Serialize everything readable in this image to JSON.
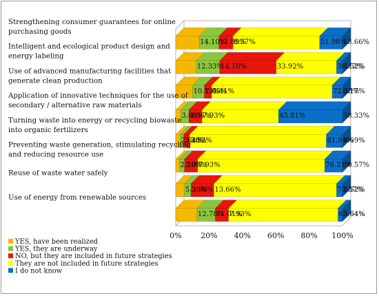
{
  "chart_data": {
    "type": "bar",
    "orientation": "horizontal",
    "stacked": true,
    "style": "3d",
    "x_ticks": [
      "0%",
      "20%",
      "40%",
      "60%",
      "80%",
      "100%"
    ],
    "xlim": [
      0,
      100
    ],
    "legend_position": "bottom-left",
    "categories": [
      [
        "Strengthening consumer guarantees for online",
        "purchasing goods"
      ],
      [
        "Intelligent and ecological product design and",
        "energy labeling"
      ],
      [
        "Use of advanced manufacturing facilities that",
        "generate clean production"
      ],
      [
        "Application of innovative techniques for the use of",
        "secondary / alternative raw materials"
      ],
      [
        "Turning waste into energy or recycling biowaste",
        "into organic fertilizers"
      ],
      [
        "Preventing waste generation, stimulating recycling",
        "and reducing resource use"
      ],
      [
        "Reuse of waste water safely"
      ],
      [
        "Use of energy from renewable sources"
      ]
    ],
    "series": [
      {
        "name": "YES, have been realized",
        "color": "#f5b800",
        "values": [
          14.1,
          12.33,
          10.13,
          3.08,
          2.64,
          2.2,
          5.29,
          12.78
        ],
        "labels": [
          "14.10%",
          "12.33%",
          "10.13%",
          "3.08%",
          "2.64%",
          "2.20%",
          "5.29%",
          "12.78%"
        ]
      },
      {
        "name": "YES, they are underway",
        "color": "#8cc63f",
        "values": [
          11.89,
          14.1,
          7.05,
          4.85,
          2.2,
          3.08,
          3.96,
          11.01
        ],
        "labels": [
          "11.89%",
          "14.10%",
          "7.05%",
          "4.85%",
          "2.20%",
          "3.08%",
          "3.96%",
          "11.01%"
        ]
      },
      {
        "name": "NO, but they are included in future strategies",
        "color": "#e8160c",
        "values": [
          8.37,
          33.92,
          4.41,
          7.93,
          3.52,
          7.93,
          13.66,
          7.93
        ],
        "labels": [
          "8.37%",
          "33.92%",
          "4.41%",
          "7.93%",
          "3.52%",
          "7.93%",
          "13.66%",
          "7.93%"
        ]
      },
      {
        "name": "They are not included in future strategies",
        "color": "#ffff00",
        "values": [
          51.98,
          36.12,
          72.25,
          45.81,
          81.94,
          76.21,
          73.57,
          65.64
        ],
        "labels": [
          "51.98%",
          "36.12%",
          "72.25%",
          "45.81%",
          "81.94%",
          "76.21%",
          "73.57%",
          "65.64%"
        ]
      },
      {
        "name": "I do not know",
        "color": "#0b6fc7",
        "values": [
          13.66,
          3.52,
          6.17,
          38.33,
          9.69,
          10.57,
          3.52,
          2.64
        ],
        "labels": [
          "13.66%",
          "3.52%",
          "6.17%",
          "38.33%",
          "9.69%",
          "10.57%",
          "3.52%",
          "2.64%"
        ]
      }
    ]
  }
}
